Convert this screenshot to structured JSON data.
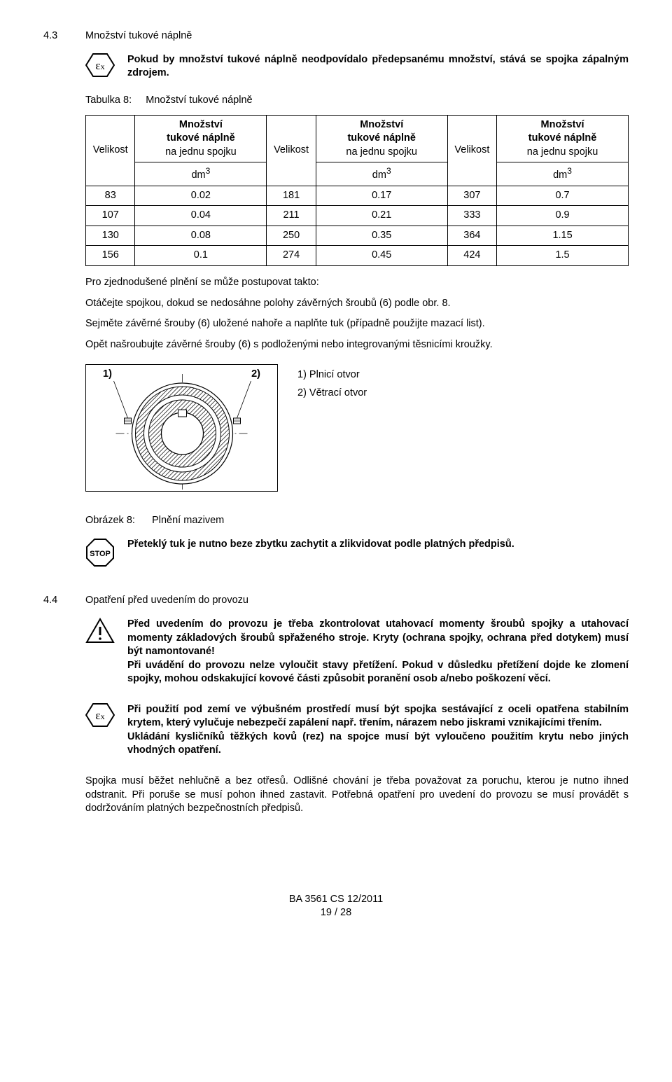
{
  "sect43": {
    "num": "4.3",
    "title": "Množství tukové náplně",
    "note": "Pokud by množství tukové náplně neodpovídalo předepsanému množství, stává se spojka zápalným zdrojem.",
    "table_caption_prefix": "Tabulka 8:",
    "table_caption": "Množství tukové náplně",
    "col_size": "Velikost",
    "col_amount_line1": "Množství",
    "col_amount_line2": "tukové náplně",
    "col_amount_line3": "na jednu spojku",
    "col_unit": "dm",
    "col_unit_sup": "3",
    "rows": [
      [
        "83",
        "0.02",
        "181",
        "0.17",
        "307",
        "0.7"
      ],
      [
        "107",
        "0.04",
        "211",
        "0.21",
        "333",
        "0.9"
      ],
      [
        "130",
        "0.08",
        "250",
        "0.35",
        "364",
        "1.15"
      ],
      [
        "156",
        "0.1",
        "274",
        "0.45",
        "424",
        "1.5"
      ]
    ],
    "p1": "Pro zjednodušené plnění se může postupovat takto:",
    "p2": "Otáčejte spojkou, dokud se nedosáhne polohy závěrných šroubů (6) podle obr. 8.",
    "p3": "Sejměte závěrné šrouby (6) uložené nahoře a naplňte tuk (případně použijte mazací list).",
    "p4": "Opět našroubujte závěrné šrouby (6) s podloženými nebo integrovanými těsnicími kroužky.",
    "fig_label1": "1)",
    "fig_label2": "2)",
    "fig_cap1": "1)  Plnicí otvor",
    "fig_cap2": "2)  Větrací otvor",
    "figure_caption_prefix": "Obrázek 8:",
    "figure_caption": "Plnění mazivem",
    "stop_note": "Přeteklý tuk je nutno beze zbytku zachytit a zlikvidovat podle platných předpisů."
  },
  "sect44": {
    "num": "4.4",
    "title": "Opatření před uvedením do provozu",
    "warn_note": "Před uvedením do provozu je třeba zkontrolovat utahovací momenty šroubů spojky a utahovací momenty základových šroubů spřaženého stroje. Kryty (ochrana spojky, ochrana před dotykem) musí být namontované!\nPři uvádění do provozu nelze vyloučit stavy přetížení. Pokud v důsledku přetížení dojde ke zlomení spojky, mohou odskakující kovové části způsobit poranění osob a/nebo poškození věcí.",
    "ex_note": "Při použití pod zemí ve výbušném prostředí musí být spojka sestávající z oceli opatřena stabilním krytem, který vylučuje nebezpečí zapálení např. třením, nárazem nebo jiskrami vznikajícími třením.\nUkládání kysličníků těžkých kovů (rez) na spojce musí být vyloučeno použitím krytu nebo jiných vhodných opatření.",
    "p_tail": "Spojka musí běžet nehlučně a bez otřesů. Odlišné chování je třeba považovat za poruchu, kterou je nutno ihned odstranit. Při poruše se musí pohon ihned zastavit. Potřebná opatření pro uvedení do provozu se musí provádět s dodržováním platných bezpečnostních předpisů."
  },
  "footer": {
    "line1": "BA 3561 CS 12/2011",
    "line2": "19 / 28"
  }
}
